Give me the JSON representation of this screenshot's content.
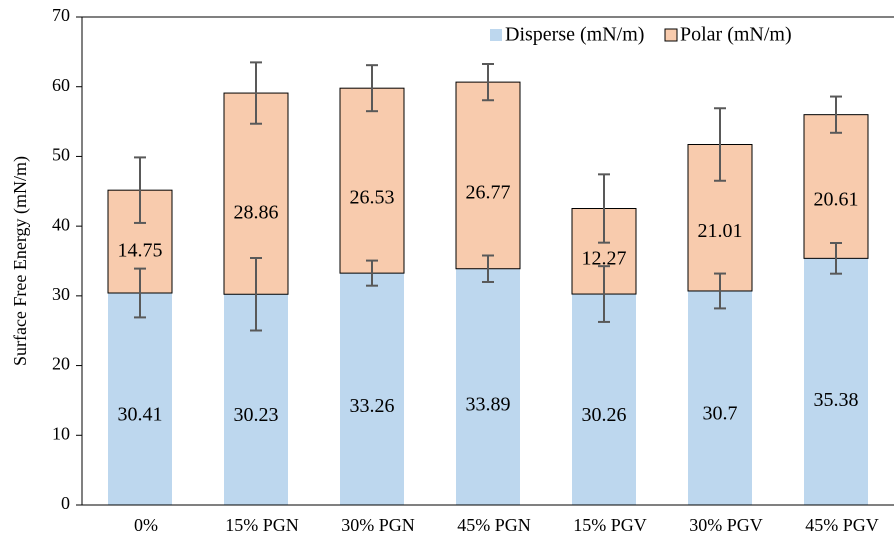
{
  "chart_data": {
    "type": "stacked_bar",
    "y_label": "Surface Free Energy (mN/m)",
    "categories": [
      "0%",
      "15% PGN",
      "30% PGN",
      "45% PGN",
      "15% PGV",
      "30% PGV",
      "45% PGV"
    ],
    "series": [
      {
        "name": "Disperse (mN/m)",
        "color": "#bdd7ee",
        "values": [
          30.41,
          30.23,
          33.26,
          33.89,
          30.26,
          30.7,
          35.38
        ],
        "errors": [
          3.5,
          5.2,
          1.8,
          1.9,
          4.0,
          2.5,
          2.2
        ]
      },
      {
        "name": "Polar (mN/m)",
        "color": "#f8cbad",
        "values": [
          14.75,
          28.86,
          26.53,
          26.77,
          12.27,
          21.01,
          20.61
        ],
        "errors": [
          4.7,
          4.4,
          3.3,
          2.6,
          4.9,
          5.2,
          2.6
        ]
      }
    ],
    "ylim": [
      0,
      70
    ],
    "yticks": [
      0,
      10,
      20,
      30,
      40,
      50,
      60,
      70
    ],
    "legend": "top-right",
    "grid": false
  }
}
